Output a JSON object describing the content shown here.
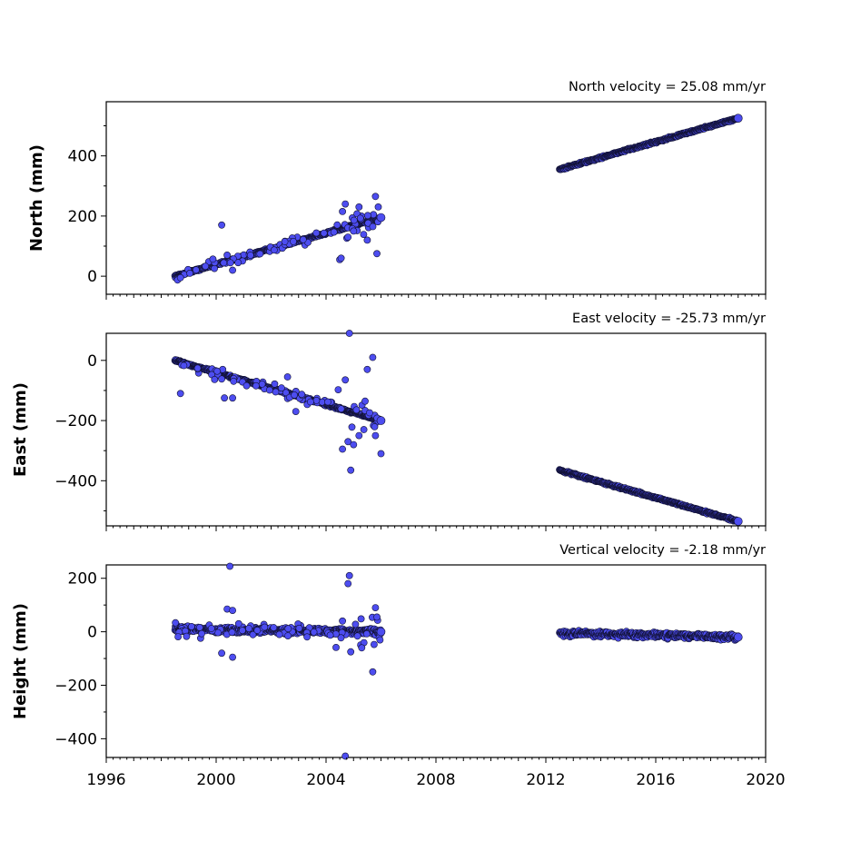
{
  "chart_data": [
    {
      "type": "scatter",
      "ylabel": "North (mm)",
      "annotation": "North velocity = 25.08 mm/yr",
      "velocity": 25.08,
      "ylim": [
        -60,
        580
      ],
      "yticks": [
        0,
        200,
        400
      ],
      "ytick_labels": [
        "0",
        "200",
        "400"
      ],
      "xlim": [
        1996,
        2020
      ],
      "xticks": [
        1996,
        2000,
        2004,
        2008,
        2012,
        2016,
        2020
      ],
      "segments": [
        {
          "x_start": 1998.5,
          "x_end": 2006.0,
          "y_start": 0,
          "y_end": 195
        },
        {
          "x_start": 2012.5,
          "x_end": 2019.0,
          "y_start": 355,
          "y_end": 525
        }
      ],
      "outliers": [
        {
          "x": 1998.7,
          "y": -5
        },
        {
          "x": 2000.2,
          "y": 170
        },
        {
          "x": 2000.4,
          "y": 70
        },
        {
          "x": 2000.6,
          "y": 20
        },
        {
          "x": 2000.8,
          "y": 45
        },
        {
          "x": 2002.5,
          "y": 115
        },
        {
          "x": 2004.5,
          "y": 55
        },
        {
          "x": 2004.6,
          "y": 215
        },
        {
          "x": 2004.7,
          "y": 240
        },
        {
          "x": 2004.8,
          "y": 130
        },
        {
          "x": 2005.0,
          "y": 150
        },
        {
          "x": 2005.2,
          "y": 230
        },
        {
          "x": 2005.5,
          "y": 120
        },
        {
          "x": 2005.8,
          "y": 265
        },
        {
          "x": 2005.85,
          "y": 75
        },
        {
          "x": 2005.9,
          "y": 230
        },
        {
          "x": 2004.55,
          "y": 60
        }
      ]
    },
    {
      "type": "scatter",
      "ylabel": "East (mm)",
      "annotation": "East velocity = -25.73 mm/yr",
      "velocity": -25.73,
      "ylim": [
        -550,
        90
      ],
      "yticks": [
        -400,
        -200,
        0
      ],
      "ytick_labels": [
        "−400",
        "−200",
        "0"
      ],
      "xlim": [
        1996,
        2020
      ],
      "xticks": [
        1996,
        2000,
        2004,
        2008,
        2012,
        2016,
        2020
      ],
      "segments": [
        {
          "x_start": 1998.5,
          "x_end": 2006.0,
          "y_start": 0,
          "y_end": -200
        },
        {
          "x_start": 2012.5,
          "x_end": 2019.0,
          "y_start": -365,
          "y_end": -535
        }
      ],
      "outliers": [
        {
          "x": 1998.7,
          "y": -110
        },
        {
          "x": 2000.3,
          "y": -125
        },
        {
          "x": 2000.6,
          "y": -125
        },
        {
          "x": 2002.6,
          "y": -55
        },
        {
          "x": 2002.9,
          "y": -170
        },
        {
          "x": 2004.6,
          "y": -295
        },
        {
          "x": 2004.7,
          "y": -65
        },
        {
          "x": 2004.9,
          "y": -365
        },
        {
          "x": 2004.85,
          "y": 90
        },
        {
          "x": 2005.2,
          "y": -250
        },
        {
          "x": 2005.5,
          "y": -30
        },
        {
          "x": 2005.7,
          "y": 10
        },
        {
          "x": 2005.8,
          "y": -250
        },
        {
          "x": 2006.0,
          "y": -310
        },
        {
          "x": 2004.8,
          "y": -270
        },
        {
          "x": 2005.0,
          "y": -280
        }
      ]
    },
    {
      "type": "scatter",
      "ylabel": "Height (mm)",
      "annotation": "Vertical velocity = -2.18 mm/yr",
      "velocity": -2.18,
      "ylim": [
        -470,
        250
      ],
      "yticks": [
        -400,
        -200,
        0,
        200
      ],
      "ytick_labels": [
        "−400",
        "−200",
        "0",
        "200"
      ],
      "xlim": [
        1996,
        2020
      ],
      "xticks": [
        1996,
        2000,
        2004,
        2008,
        2012,
        2016,
        2020
      ],
      "xtick_labels": [
        "1996",
        "2000",
        "2004",
        "2008",
        "2012",
        "2016",
        "2020"
      ],
      "segments": [
        {
          "x_start": 1998.5,
          "x_end": 2006.0,
          "y_start": 10,
          "y_end": 0
        },
        {
          "x_start": 2012.5,
          "x_end": 2019.0,
          "y_start": -5,
          "y_end": -20
        }
      ],
      "outliers": [
        {
          "x": 2000.5,
          "y": 245
        },
        {
          "x": 2000.4,
          "y": 85
        },
        {
          "x": 2000.6,
          "y": 80
        },
        {
          "x": 2000.2,
          "y": -80
        },
        {
          "x": 2000.6,
          "y": -95
        },
        {
          "x": 2004.85,
          "y": 210
        },
        {
          "x": 2004.8,
          "y": 180
        },
        {
          "x": 2004.7,
          "y": -465
        },
        {
          "x": 2004.9,
          "y": -75
        },
        {
          "x": 2005.7,
          "y": -150
        },
        {
          "x": 2005.8,
          "y": 90
        },
        {
          "x": 2005.85,
          "y": 55
        },
        {
          "x": 2004.6,
          "y": 40
        },
        {
          "x": 2005.3,
          "y": -60
        }
      ]
    }
  ]
}
